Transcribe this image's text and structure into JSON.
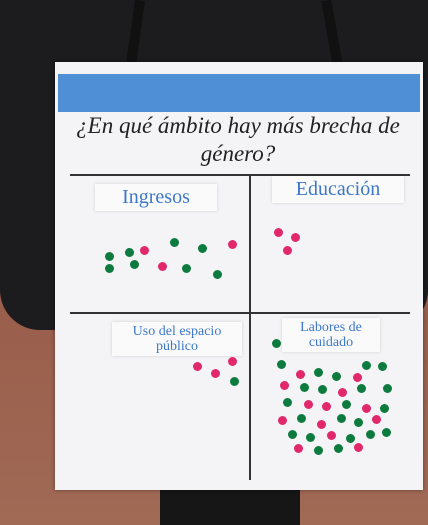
{
  "poster": {
    "question": "¿En qué ámbito hay más brecha de género?",
    "quadrants": [
      {
        "label": "Ingresos"
      },
      {
        "label": "Educación"
      },
      {
        "label": "Uso del espacio público"
      },
      {
        "label": "Labores de cuidado"
      }
    ]
  }
}
